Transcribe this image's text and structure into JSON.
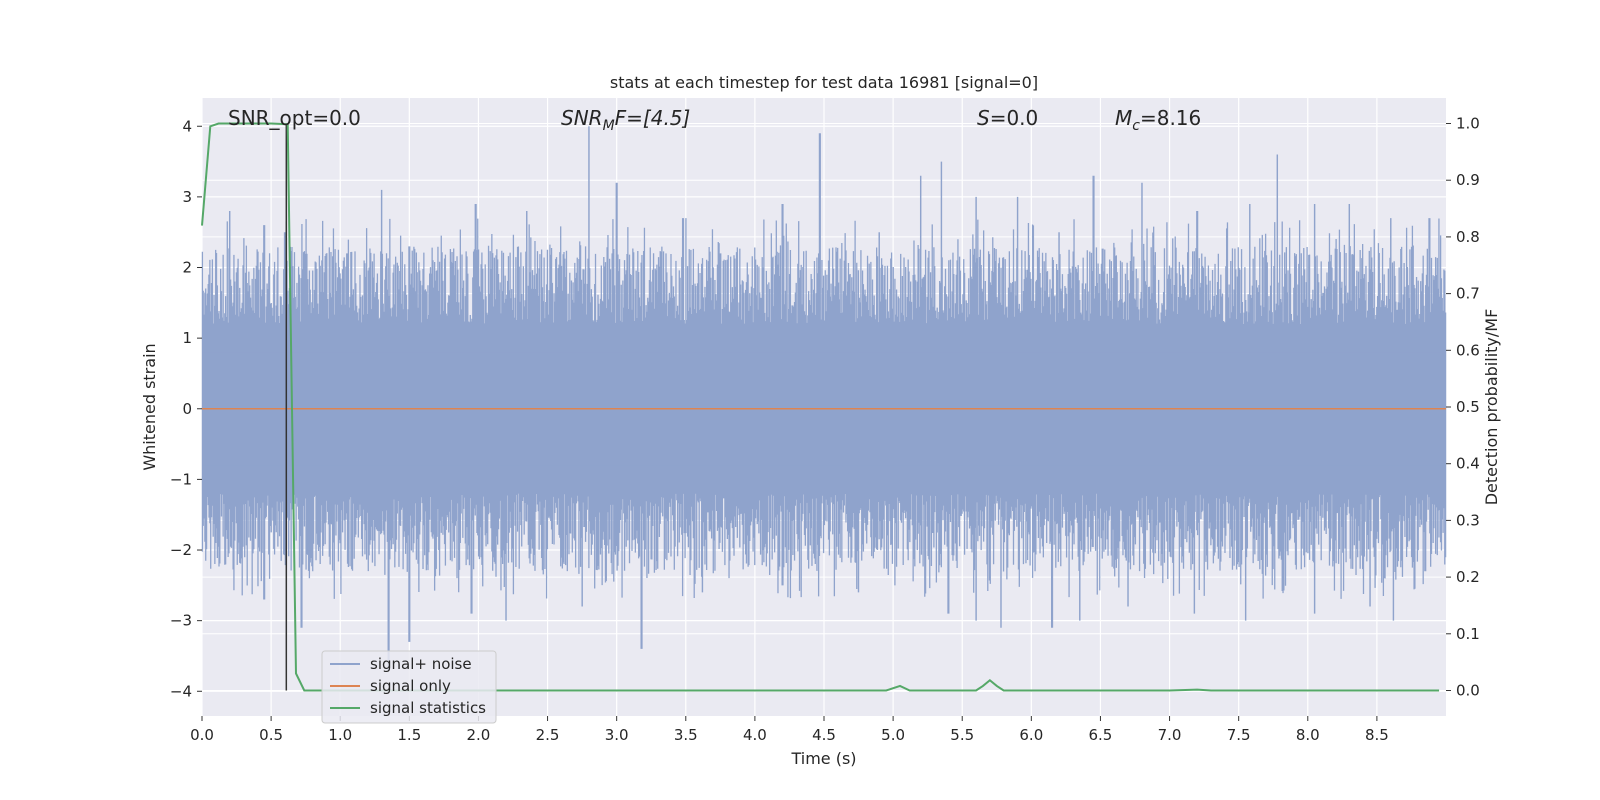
{
  "chart_data": {
    "type": "line",
    "title": "stats at each timestep for test data 16981 [signal=0]",
    "xlabel": "Time (s)",
    "ylabel": "Whitened strain",
    "y2label": "Detection probability/MF",
    "xlim": [
      0.0,
      9.0
    ],
    "ylim": [
      -4.35,
      4.4
    ],
    "y2lim": [
      -0.045,
      1.045
    ],
    "x_ticks": [
      "0.0",
      "0.5",
      "1.0",
      "1.5",
      "2.0",
      "2.5",
      "3.0",
      "3.5",
      "4.0",
      "4.5",
      "5.0",
      "5.5",
      "6.0",
      "6.5",
      "7.0",
      "7.5",
      "8.0",
      "8.5"
    ],
    "y_ticks": [
      "4",
      "3",
      "2",
      "1",
      "0",
      "−1",
      "−2",
      "−3",
      "−4"
    ],
    "y2_ticks": [
      "1.0",
      "0.9",
      "0.8",
      "0.7",
      "0.6",
      "0.5",
      "0.4",
      "0.3",
      "0.2",
      "0.1",
      "0.0"
    ],
    "grid": true,
    "legend": {
      "placement": "lower-left",
      "entries": [
        "signal+ noise",
        "signal only",
        "signal statistics"
      ]
    },
    "annotations": {
      "snr_opt": "SNR_opt=0.0",
      "snr_mf_main": "SNR",
      "snr_mf_sub": "M",
      "snr_mf_rest": "F=[4.5]",
      "s_main": "S",
      "s_rest": "=0.0",
      "mc_main": "M",
      "mc_sub": "c",
      "mc_rest": "=8.16"
    },
    "colors": {
      "noise": "#8fa3cc",
      "signal": "#dd8452",
      "stats": "#55a868",
      "vline": "#333333",
      "bg": "#eaeaf2"
    },
    "vertical_marker_x": 0.61,
    "series": [
      {
        "name": "signal+ noise",
        "envelope_note": "",
        "upper_peaks": [
          [
            0.05,
            1.9
          ],
          [
            0.2,
            2.8
          ],
          [
            0.45,
            2.6
          ],
          [
            0.6,
            2.5
          ],
          [
            1.05,
            2.2
          ],
          [
            1.3,
            3.1
          ],
          [
            1.5,
            2.3
          ],
          [
            1.98,
            2.9
          ],
          [
            2.35,
            2.8
          ],
          [
            2.8,
            4.0
          ],
          [
            3.0,
            3.2
          ],
          [
            3.48,
            2.7
          ],
          [
            3.75,
            2.2
          ],
          [
            4.2,
            2.9
          ],
          [
            4.47,
            3.9
          ],
          [
            4.9,
            2.5
          ],
          [
            5.2,
            3.3
          ],
          [
            5.35,
            3.5
          ],
          [
            5.6,
            3.0
          ],
          [
            5.9,
            3.0
          ],
          [
            6.2,
            2.5
          ],
          [
            6.45,
            3.3
          ],
          [
            6.8,
            3.2
          ],
          [
            7.2,
            2.8
          ],
          [
            7.58,
            2.9
          ],
          [
            7.78,
            3.6
          ],
          [
            8.05,
            2.9
          ],
          [
            8.3,
            2.9
          ],
          [
            8.6,
            2.7
          ],
          [
            8.88,
            2.7
          ]
        ],
        "lower_peaks": [
          [
            0.1,
            -1.9
          ],
          [
            0.45,
            -2.7
          ],
          [
            0.72,
            -3.1
          ],
          [
            1.35,
            -3.7
          ],
          [
            1.5,
            -3.3
          ],
          [
            1.95,
            -2.9
          ],
          [
            2.2,
            -3.0
          ],
          [
            2.75,
            -2.8
          ],
          [
            3.18,
            -3.4
          ],
          [
            3.62,
            -2.6
          ],
          [
            4.2,
            -2.5
          ],
          [
            4.75,
            -2.6
          ],
          [
            5.4,
            -2.9
          ],
          [
            5.6,
            -3.0
          ],
          [
            5.78,
            -3.1
          ],
          [
            6.15,
            -3.1
          ],
          [
            6.35,
            -3.0
          ],
          [
            6.7,
            -2.8
          ],
          [
            7.18,
            -2.9
          ],
          [
            7.55,
            -3.0
          ],
          [
            8.05,
            -2.9
          ],
          [
            8.45,
            -2.8
          ],
          [
            8.62,
            -3.0
          ],
          [
            8.85,
            -2.3
          ]
        ]
      },
      {
        "name": "signal only",
        "x": [
          0.0,
          9.0
        ],
        "y": [
          0.0,
          0.0
        ]
      },
      {
        "name": "signal statistics",
        "axis": "right",
        "x": [
          0.0,
          0.06,
          0.12,
          0.2,
          0.3,
          0.4,
          0.5,
          0.6,
          0.62,
          0.68,
          0.74,
          0.8,
          1.0,
          2.0,
          3.0,
          4.0,
          4.95,
          5.05,
          5.12,
          5.2,
          5.6,
          5.65,
          5.7,
          5.75,
          5.8,
          6.0,
          7.0,
          7.2,
          7.3,
          8.0,
          8.95
        ],
        "y": [
          0.82,
          0.995,
          1.0,
          1.0,
          1.0,
          1.0,
          1.0,
          0.999,
          0.999,
          0.03,
          0.0,
          0.0,
          0.0,
          0.0,
          0.0,
          0.0,
          0.0,
          0.008,
          0.0,
          0.0,
          0.0,
          0.008,
          0.018,
          0.008,
          0.0,
          0.0,
          0.0,
          0.0015,
          0.0,
          0.0,
          0.0
        ]
      }
    ]
  }
}
